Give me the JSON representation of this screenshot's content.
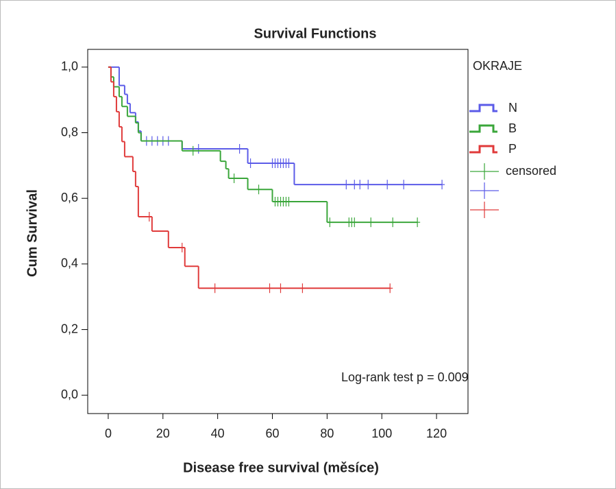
{
  "chart_data": {
    "type": "line",
    "step": true,
    "title": "Survival Functions",
    "x_label": "Disease free survival (měsíce)",
    "y_label": "Cum Survival",
    "legend_title": "OKRAJE",
    "censored_label": "censored",
    "annotation": "Log-rank test  p = 0.009",
    "xlim": [
      -7.5,
      131.5
    ],
    "ylim": [
      -0.056,
      1.054
    ],
    "xticks": [
      0,
      20,
      40,
      60,
      80,
      100,
      120
    ],
    "yticks": [
      {
        "value": 0,
        "label": "0,0"
      },
      {
        "value": 0.2,
        "label": "0,2"
      },
      {
        "value": 0.4,
        "label": "0,4"
      },
      {
        "value": 0.6,
        "label": "0,6"
      },
      {
        "value": 0.8,
        "label": "0,8"
      },
      {
        "value": 1,
        "label": "1,0"
      }
    ],
    "series": [
      {
        "name": "N",
        "color": "#5b5be8",
        "x": [
          0,
          4,
          6,
          7,
          8,
          10,
          11,
          12,
          27,
          51,
          68
        ],
        "values": [
          1,
          0.944,
          0.917,
          0.889,
          0.861,
          0.833,
          0.805,
          0.775,
          0.751,
          0.707,
          0.642
        ],
        "censor_times": [
          14,
          16,
          18,
          20,
          22,
          33,
          48,
          52,
          60,
          61,
          62,
          63,
          64,
          65,
          66,
          87,
          90,
          92,
          95,
          102,
          108,
          122
        ],
        "censor_values": [
          0.775,
          0.775,
          0.775,
          0.775,
          0.775,
          0.751,
          0.751,
          0.707,
          0.707,
          0.707,
          0.707,
          0.707,
          0.707,
          0.707,
          0.707,
          0.642,
          0.642,
          0.642,
          0.642,
          0.642,
          0.642,
          0.642
        ]
      },
      {
        "name": "B",
        "color": "#3aa63a",
        "x": [
          0,
          1,
          2,
          4,
          5,
          7,
          10,
          11,
          12,
          27,
          41,
          43,
          44,
          51,
          60,
          80
        ],
        "values": [
          1,
          0.97,
          0.94,
          0.91,
          0.88,
          0.85,
          0.83,
          0.8,
          0.775,
          0.745,
          0.713,
          0.69,
          0.661,
          0.627,
          0.59,
          0.527
        ],
        "censor_times": [
          31,
          46,
          55,
          61,
          62,
          63,
          64,
          65,
          66,
          81,
          88,
          89,
          90,
          96,
          104,
          113
        ],
        "censor_values": [
          0.745,
          0.661,
          0.627,
          0.59,
          0.59,
          0.59,
          0.59,
          0.59,
          0.59,
          0.527,
          0.527,
          0.527,
          0.527,
          0.527,
          0.527,
          0.527
        ]
      },
      {
        "name": "P",
        "color": "#e03a3a",
        "x": [
          0,
          1,
          2,
          3,
          4,
          5,
          6,
          9,
          10,
          11,
          16,
          22,
          28,
          33
        ],
        "values": [
          1,
          0.955,
          0.91,
          0.864,
          0.818,
          0.773,
          0.727,
          0.682,
          0.636,
          0.544,
          0.5,
          0.45,
          0.393,
          0.326
        ],
        "censor_times": [
          15,
          27,
          39,
          59,
          63,
          71,
          103
        ],
        "censor_values": [
          0.544,
          0.45,
          0.326,
          0.326,
          0.326,
          0.326,
          0.326
        ]
      }
    ]
  }
}
